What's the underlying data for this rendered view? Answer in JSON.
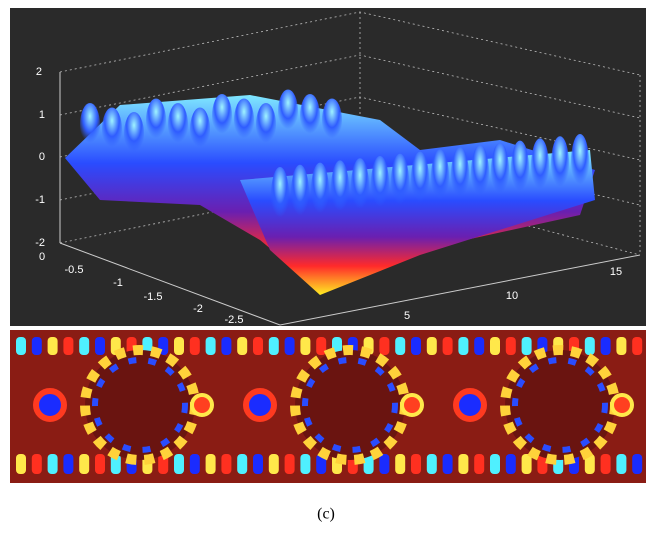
{
  "figure": {
    "surface_plot": {
      "z_ticks": [
        "2",
        "1",
        "0",
        "-1",
        "-2"
      ],
      "y_ticks": [
        "0",
        "-0.5",
        "-1",
        "-1.5",
        "-2",
        "-2.5"
      ],
      "x_ticks": [
        "5",
        "10",
        "15"
      ]
    },
    "caption": "(c)"
  }
}
